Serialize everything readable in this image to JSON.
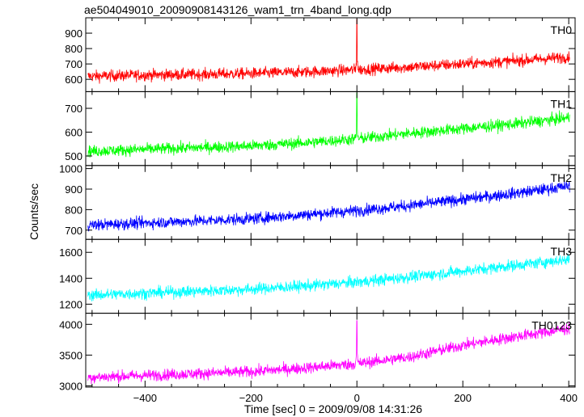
{
  "chart_data": {
    "type": "line",
    "title": "ae504049010_20090908143126_wam1_trn_4band_long.qdp",
    "xlabel": "Time [sec] 0 = 2009/09/08 14:31:26",
    "ylabel": "Counts/sec",
    "xlim": [
      -512,
      412
    ],
    "x_ticks": [
      -400,
      -200,
      0,
      200,
      400
    ],
    "grid": false,
    "series": [
      {
        "name": "TH0",
        "color": "#ff0000",
        "ylim": [
          520,
          1000
        ],
        "y_ticks": [
          600,
          700,
          800,
          900
        ],
        "y_tick_labels": [
          "600",
          "700",
          "800",
          "900"
        ],
        "x": [
          -500,
          -400,
          -300,
          -200,
          -100,
          0,
          100,
          200,
          300,
          400
        ],
        "values": [
          620,
          628,
          632,
          638,
          648,
          662,
          680,
          700,
          720,
          745
        ],
        "spikes": [
          {
            "x": 0,
            "value": 990
          }
        ]
      },
      {
        "name": "TH1",
        "color": "#00ff00",
        "ylim": [
          460,
          770
        ],
        "y_ticks": [
          500,
          600,
          700
        ],
        "y_tick_labels": [
          "500",
          "600",
          "700"
        ],
        "x": [
          -500,
          -400,
          -300,
          -200,
          -100,
          0,
          100,
          200,
          300,
          400
        ],
        "values": [
          520,
          528,
          535,
          542,
          555,
          572,
          595,
          615,
          635,
          660
        ],
        "spikes": [
          {
            "x": 0,
            "value": 765
          }
        ]
      },
      {
        "name": "TH2",
        "color": "#0000ff",
        "ylim": [
          655,
          1015
        ],
        "y_ticks": [
          700,
          800,
          900,
          1000
        ],
        "y_tick_labels": [
          "700",
          "800",
          "900",
          "1000"
        ],
        "x": [
          -500,
          -400,
          -300,
          -200,
          -100,
          0,
          100,
          200,
          300,
          400
        ],
        "values": [
          725,
          735,
          745,
          755,
          775,
          795,
          820,
          850,
          880,
          915
        ],
        "spikes": []
      },
      {
        "name": "TH3",
        "color": "#00ffff",
        "ylim": [
          1130,
          1700
        ],
        "y_ticks": [
          1200,
          1400,
          1600
        ],
        "y_tick_labels": [
          "1200",
          "1400",
          "1600"
        ],
        "x": [
          -500,
          -400,
          -300,
          -200,
          -100,
          0,
          100,
          200,
          300,
          400
        ],
        "values": [
          1270,
          1285,
          1300,
          1315,
          1340,
          1370,
          1410,
          1455,
          1500,
          1545
        ],
        "spikes": []
      },
      {
        "name": "TH0123",
        "color": "#ff00ff",
        "ylim": [
          2980,
          4180
        ],
        "y_ticks": [
          3000,
          3500,
          4000
        ],
        "y_tick_labels": [
          "3000",
          "3500",
          "4000"
        ],
        "x": [
          -500,
          -400,
          -300,
          -200,
          -100,
          0,
          100,
          200,
          300,
          400
        ],
        "values": [
          3140,
          3170,
          3200,
          3230,
          3290,
          3360,
          3470,
          3660,
          3800,
          3930
        ],
        "spikes": [
          {
            "x": 0,
            "value": 4060
          }
        ]
      }
    ],
    "x_tick_labels": [
      "−400",
      "−200",
      "0",
      "200",
      "400"
    ]
  }
}
